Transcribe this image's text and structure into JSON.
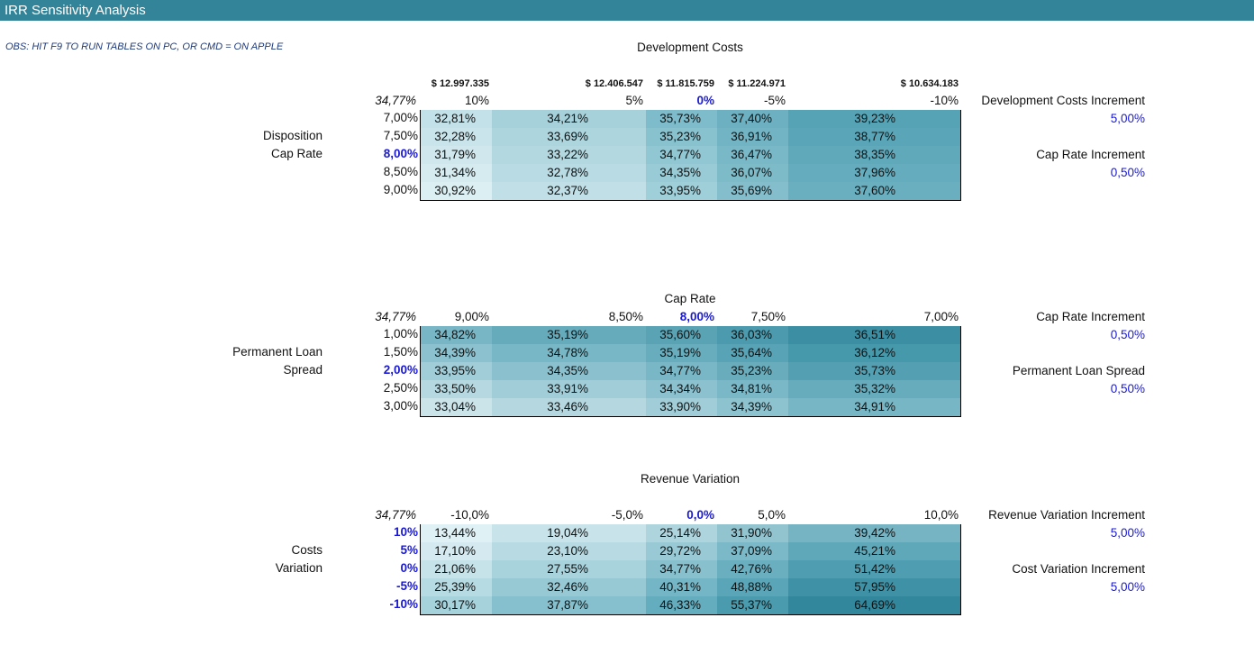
{
  "window": {
    "title": "IRR Sensitivity Analysis"
  },
  "note": "OBS:  HIT F9 TO RUN TABLES ON PC, OR CMD = ON APPLE",
  "tables": [
    {
      "title": "Development Costs",
      "corner": "34,77%",
      "top_labels": [
        "$ 12.997.335",
        "$ 12.406.547",
        "$ 11.815.759",
        "$ 11.224.971",
        "$ 10.634.183"
      ],
      "columns": [
        "10%",
        "5%",
        "0%",
        "-5%",
        "-10%"
      ],
      "rows": [
        "7,00%",
        "7,50%",
        "8,00%",
        "8,50%",
        "9,00%"
      ],
      "row_axis_label": [
        "Disposition",
        "Cap Rate"
      ],
      "values": [
        [
          "32,81%",
          "34,21%",
          "35,73%",
          "37,40%",
          "39,23%"
        ],
        [
          "32,28%",
          "33,69%",
          "35,23%",
          "36,91%",
          "38,77%"
        ],
        [
          "31,79%",
          "33,22%",
          "34,77%",
          "36,47%",
          "38,35%"
        ],
        [
          "31,34%",
          "32,78%",
          "34,35%",
          "36,07%",
          "37,96%"
        ],
        [
          "30,92%",
          "32,37%",
          "33,95%",
          "35,69%",
          "37,60%"
        ]
      ],
      "side": [
        {
          "label": "Development Costs Increment",
          "value": "5,00%"
        },
        {
          "label": "Cap Rate Increment",
          "value": "0,50%"
        }
      ]
    },
    {
      "title": "Cap Rate",
      "corner": "34,77%",
      "columns": [
        "9,00%",
        "8,50%",
        "8,00%",
        "7,50%",
        "7,00%"
      ],
      "rows": [
        "1,00%",
        "1,50%",
        "2,00%",
        "2,50%",
        "3,00%"
      ],
      "row_axis_label": [
        "Permanent Loan",
        "Spread"
      ],
      "values": [
        [
          "34,82%",
          "35,19%",
          "35,60%",
          "36,03%",
          "36,51%"
        ],
        [
          "34,39%",
          "34,78%",
          "35,19%",
          "35,64%",
          "36,12%"
        ],
        [
          "33,95%",
          "34,35%",
          "34,77%",
          "35,23%",
          "35,73%"
        ],
        [
          "33,50%",
          "33,91%",
          "34,34%",
          "34,81%",
          "35,32%"
        ],
        [
          "33,04%",
          "33,46%",
          "33,90%",
          "34,39%",
          "34,91%"
        ]
      ],
      "side": [
        {
          "label": "Cap Rate Increment",
          "value": "0,50%"
        },
        {
          "label": "Permanent Loan Spread",
          "value": "0,50%"
        }
      ]
    },
    {
      "title": "Revenue Variation",
      "corner": "34,77%",
      "columns": [
        "-10,0%",
        "-5,0%",
        "0,0%",
        "5,0%",
        "10,0%"
      ],
      "rows": [
        "10%",
        "5%",
        "0%",
        "-5%",
        "-10%"
      ],
      "row_axis_label": [
        "Costs",
        "Variation"
      ],
      "values": [
        [
          "13,44%",
          "19,04%",
          "25,14%",
          "31,90%",
          "39,42%"
        ],
        [
          "17,10%",
          "23,10%",
          "29,72%",
          "37,09%",
          "45,21%"
        ],
        [
          "21,06%",
          "27,55%",
          "34,77%",
          "42,76%",
          "51,42%"
        ],
        [
          "25,39%",
          "32,46%",
          "40,31%",
          "48,88%",
          "57,95%"
        ],
        [
          "30,17%",
          "37,87%",
          "46,33%",
          "55,37%",
          "64,69%"
        ]
      ],
      "side": [
        {
          "label": "Revenue Variation Increment",
          "value": "5,00%"
        },
        {
          "label": "Cost Variation Increment",
          "value": "5,00%"
        }
      ]
    }
  ],
  "colors": {
    "header": "#338499",
    "accent_blue": "#1a1ad6",
    "heat_light": "#dff0f4",
    "heat_dark": "#2d7f92"
  }
}
